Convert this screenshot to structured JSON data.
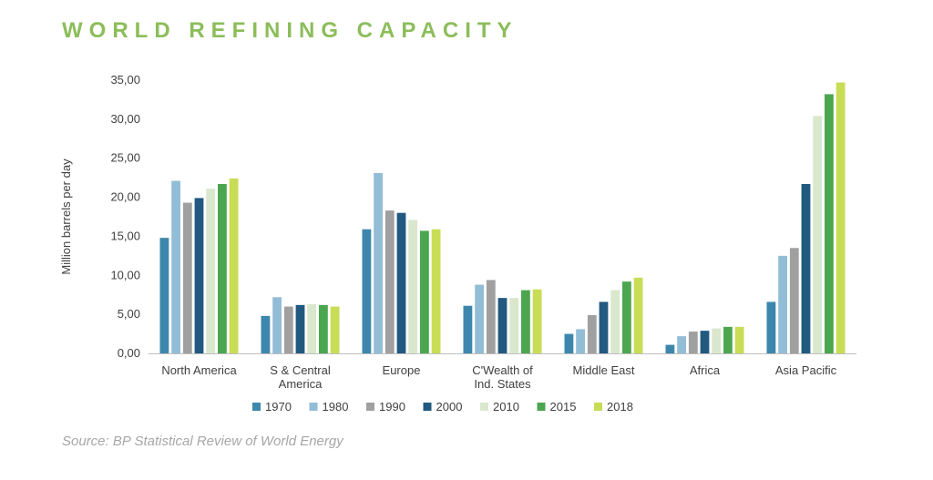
{
  "title": "WORLD REFINING CAPACITY",
  "source": "Source: BP Statistical Review of World Energy",
  "chart_data": {
    "type": "bar",
    "title": "WORLD REFINING CAPACITY",
    "ylabel": "Million barrels per day",
    "xlabel": "",
    "ylim": [
      0,
      35
    ],
    "yticks": [
      "0,00",
      "5,00",
      "10,00",
      "15,00",
      "20,00",
      "25,00",
      "30,00",
      "35,00"
    ],
    "grid": false,
    "legend_position": "bottom",
    "categories": [
      [
        "North America"
      ],
      [
        "S & Central",
        "America"
      ],
      [
        "Europe"
      ],
      [
        "C'Wealth of",
        "Ind. States"
      ],
      [
        "Middle East"
      ],
      [
        "Africa"
      ],
      [
        "Asia Pacific"
      ]
    ],
    "series": [
      {
        "name": "1970",
        "color": "#3d87ac",
        "values": [
          14.8,
          4.8,
          15.9,
          6.1,
          2.5,
          1.1,
          6.6
        ]
      },
      {
        "name": "1980",
        "color": "#92bdd6",
        "values": [
          22.1,
          7.2,
          23.1,
          8.8,
          3.1,
          2.2,
          12.5
        ]
      },
      {
        "name": "1990",
        "color": "#a0a0a0",
        "values": [
          19.3,
          6.0,
          18.3,
          9.4,
          4.9,
          2.8,
          13.5
        ]
      },
      {
        "name": "2000",
        "color": "#21597f",
        "values": [
          19.9,
          6.2,
          18.0,
          7.1,
          6.6,
          2.9,
          21.7
        ]
      },
      {
        "name": "2010",
        "color": "#d9e7cd",
        "values": [
          21.1,
          6.3,
          17.1,
          7.1,
          8.1,
          3.2,
          30.4
        ]
      },
      {
        "name": "2015",
        "color": "#4ca650",
        "values": [
          21.7,
          6.2,
          15.7,
          8.1,
          9.2,
          3.4,
          33.2
        ]
      },
      {
        "name": "2018",
        "color": "#c9dc55",
        "values": [
          22.4,
          6.0,
          15.9,
          8.2,
          9.7,
          3.4,
          34.7
        ]
      }
    ]
  }
}
